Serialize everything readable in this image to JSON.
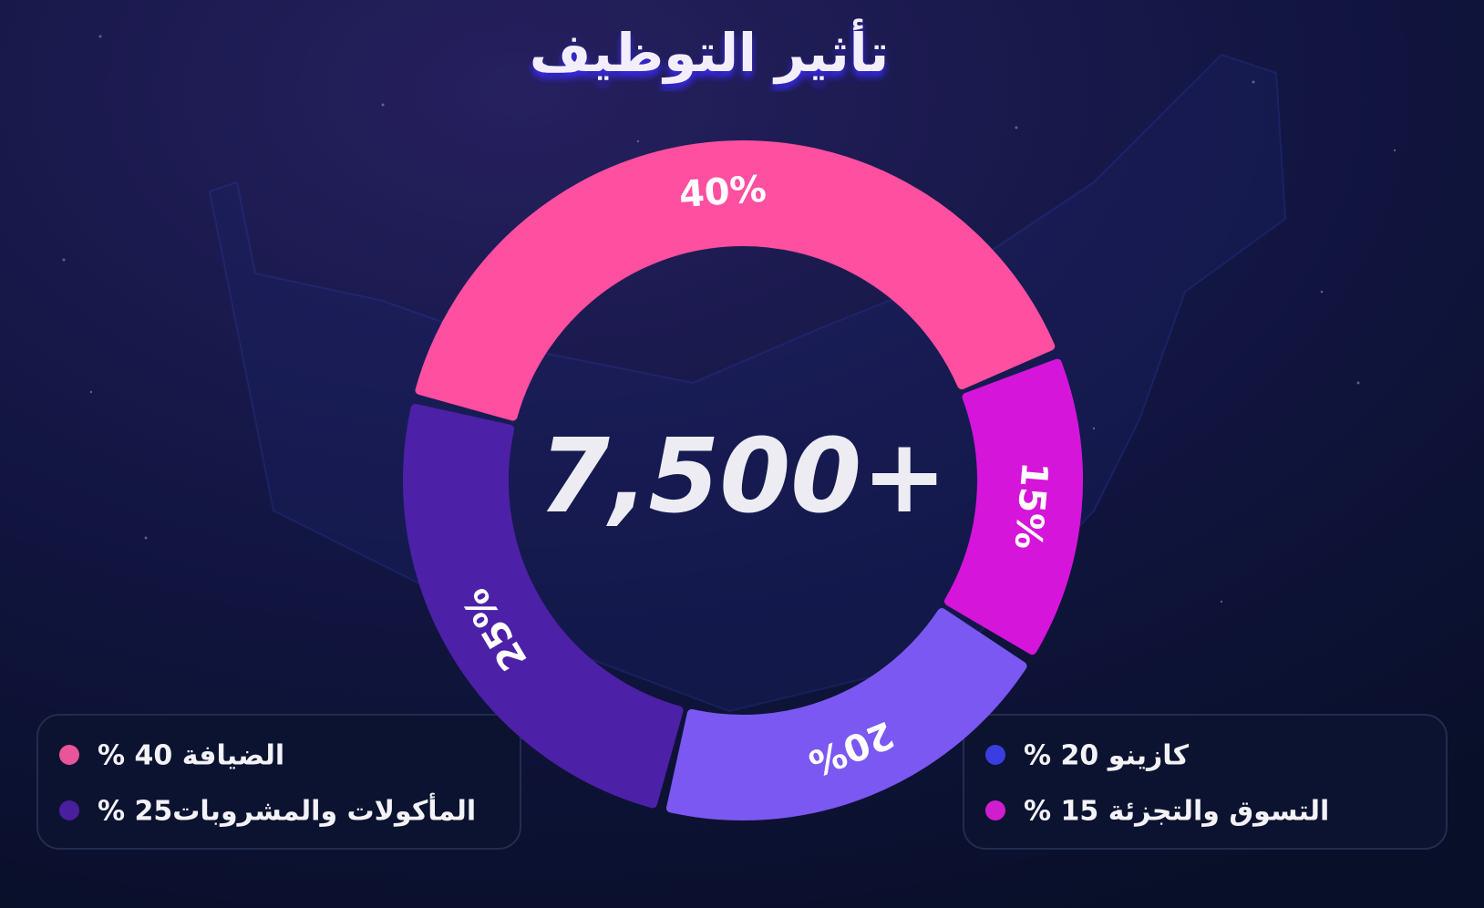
{
  "chart_data": {
    "type": "donut",
    "title": "تأثير التوظيف",
    "center_label": "7,500+",
    "categories": [
      "الضيافة 40 %",
      "التسوق والتجزئة 15 %",
      "كازينو 20 %",
      "المأكولات والمشروبات25 %"
    ],
    "values": [
      40,
      15,
      20,
      25
    ],
    "value_labels": [
      "40%",
      "15%",
      "20%",
      "25%"
    ],
    "colors": [
      "#ff4fa0",
      "#d515d9",
      "#7b58f2",
      "#4d20a8"
    ],
    "legend_colors": [
      "#e8559a",
      "#d01ecf",
      "#3a3de2",
      "#4a1f9e"
    ]
  }
}
